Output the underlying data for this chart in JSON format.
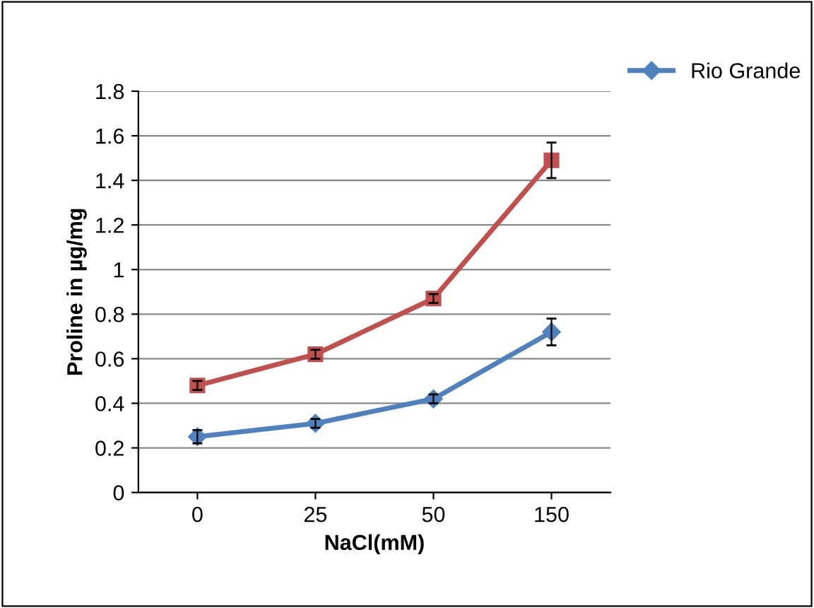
{
  "chart_data": {
    "type": "line",
    "xlabel": "NaCl(mM)",
    "ylabel": "Proline in µg/mg",
    "categories": [
      "0",
      "25",
      "50",
      "150"
    ],
    "ylim": [
      0,
      1.8
    ],
    "yticks": [
      0,
      0.2,
      0.4,
      0.6,
      0.8,
      1,
      1.2,
      1.4,
      1.6,
      1.8
    ],
    "grid": "y",
    "legend": "top right",
    "line_style": "solid",
    "series": [
      {
        "color": "#c0504d",
        "marker": "square",
        "values": [
          0.48,
          0.62,
          0.87,
          1.49
        ],
        "errors": [
          0.02,
          0.02,
          0.02,
          0.08
        ]
      },
      {
        "name": "Rio Grande",
        "color": "#4f81bd",
        "marker": "diamond",
        "values": [
          0.25,
          0.31,
          0.42,
          0.72
        ],
        "errors": [
          0.03,
          0.02,
          0.02,
          0.06
        ]
      }
    ]
  }
}
